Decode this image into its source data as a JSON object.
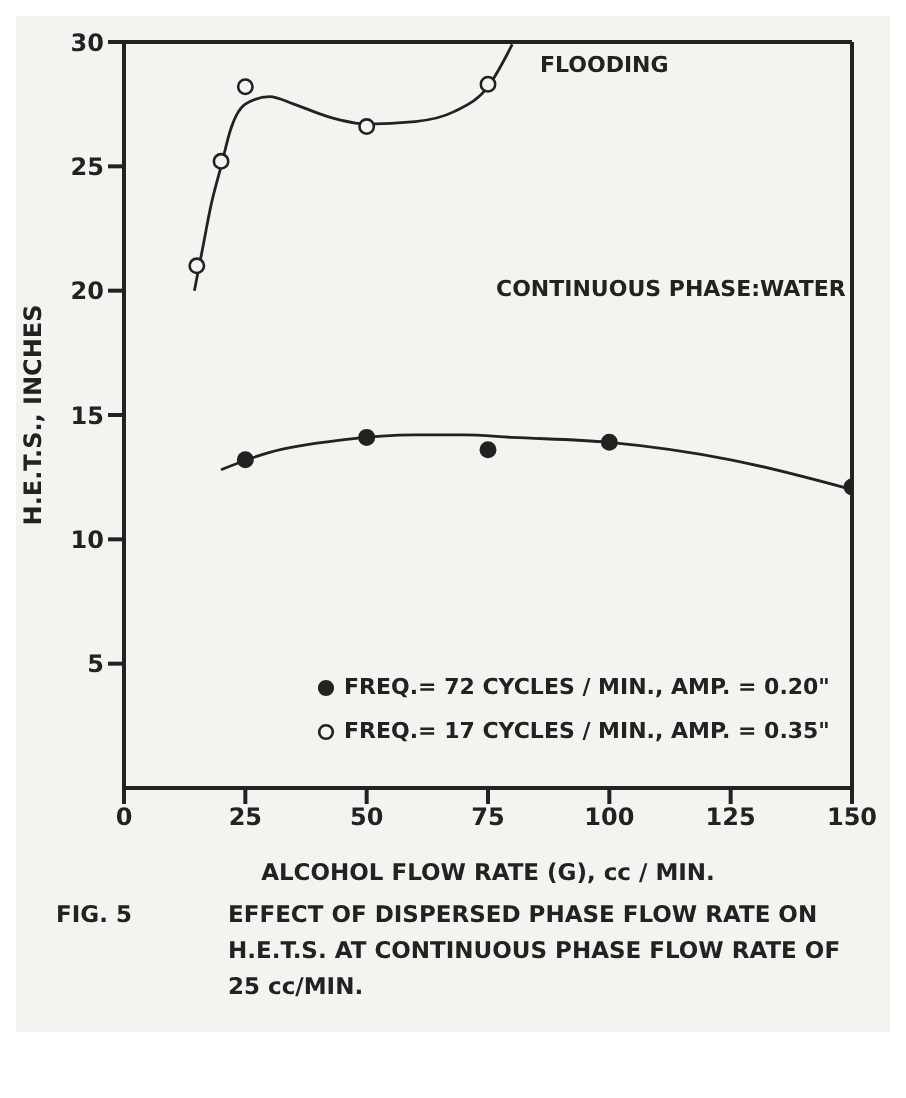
{
  "chart_data": {
    "type": "scatter",
    "title": "EFFECT OF DISPERSED PHASE FLOW RATE ON H.E.T.S. AT CONTINUOUS PHASE FLOW RATE OF 25 cc/MIN.",
    "xlabel": "ALCOHOL FLOW RATE (G), cc / MIN.",
    "ylabel": "H.E.T.S., INCHES",
    "xlim": [
      0,
      150
    ],
    "xticks": [
      0,
      25,
      50,
      75,
      100,
      125,
      150
    ],
    "ylim": [
      0,
      30
    ],
    "yticks": [
      5,
      10,
      15,
      20,
      25,
      30
    ],
    "grid": false,
    "legend": "bottom",
    "annotations": [
      "FLOODING",
      "CONTINUOUS PHASE:WATER",
      "FIG. 5"
    ],
    "series": [
      {
        "name": "FREQ.= 72 CYCLES / MIN., AMP. = 0.20\"",
        "marker": "circle",
        "color": "#222222",
        "x": [
          25,
          50,
          75,
          100,
          150
        ],
        "values": [
          13.2,
          14.1,
          13.6,
          13.9,
          12.1
        ]
      },
      {
        "name": "FREQ.= 17 CYCLES / MIN., AMP. = 0.35\"",
        "marker": "circle",
        "color": "#222222",
        "x": [
          15,
          20,
          25,
          50,
          75
        ],
        "values": [
          21.0,
          25.2,
          28.2,
          26.6,
          28.3
        ]
      },
      {
        "type": "line",
        "marker": "none",
        "line_style": "solid",
        "color": "#222222",
        "x": [
          20,
          30,
          45,
          60,
          70,
          80,
          100,
          125,
          150
        ],
        "values": [
          12.8,
          13.5,
          14.0,
          14.2,
          14.2,
          14.1,
          13.9,
          13.2,
          12.0
        ]
      },
      {
        "type": "line",
        "marker": "none",
        "line_style": "solid",
        "color": "#222222",
        "x": [
          14.5,
          16,
          18,
          20,
          22,
          25,
          30,
          35,
          42,
          50,
          60,
          68,
          75,
          80
        ],
        "values": [
          20.0,
          21.5,
          23.5,
          25.0,
          26.5,
          27.5,
          27.8,
          27.5,
          27.0,
          26.7,
          26.8,
          27.2,
          28.2,
          29.9
        ]
      }
    ]
  }
}
